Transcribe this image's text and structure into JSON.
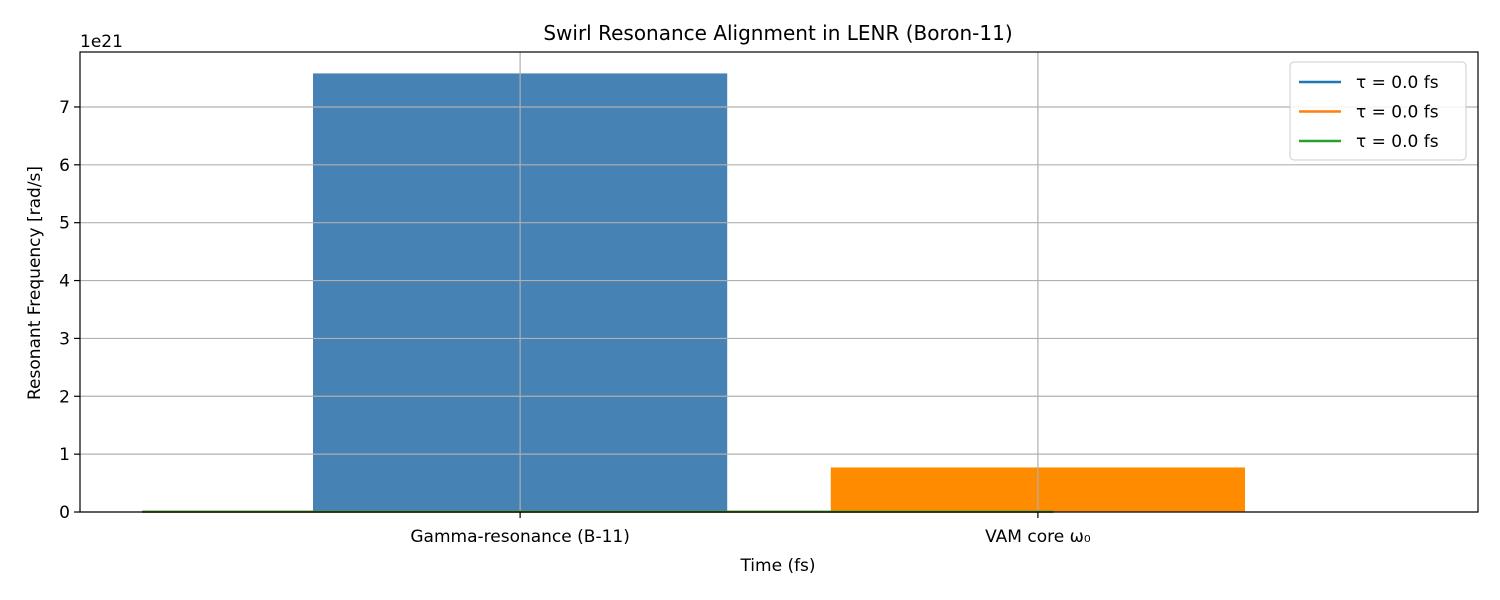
{
  "chart_data": {
    "type": "bar",
    "title": "Swirl Resonance Alignment in LENR (Boron-11)",
    "xlabel": "Time (fs)",
    "ylabel": "Resonant Frequency [rad/s]",
    "y_scale_label": "1e21",
    "y_multiplier": 1e+21,
    "ylim": [
      0,
      7.95
    ],
    "yticks": [
      0,
      1,
      2,
      3,
      4,
      5,
      6,
      7
    ],
    "x_range": [
      -0.85,
      1.85
    ],
    "categories": [
      "Gamma-resonance (B-11)",
      "VAM core ω₀"
    ],
    "bars": [
      {
        "category": "Gamma-resonance (B-11)",
        "value": 7.58,
        "color": "#4682b4"
      },
      {
        "category": "VAM core ω₀",
        "value": 0.77,
        "color": "#ff8c00"
      }
    ],
    "lines": [
      {
        "name": "τ = 0.0 fs",
        "color": "#1f77b4",
        "x": [
          -0.73,
          1.03
        ],
        "y": [
          0.005,
          0.005
        ]
      },
      {
        "name": "τ = 0.0 fs",
        "color": "#ff7f0e",
        "x": [
          -0.73,
          1.03
        ],
        "y": [
          0.005,
          0.005
        ]
      },
      {
        "name": "τ = 0.0 fs",
        "color": "#2ca02c",
        "x": [
          -0.73,
          1.03
        ],
        "y": [
          0.005,
          0.005
        ]
      }
    ],
    "grid": true,
    "legend_position": "top-right"
  }
}
